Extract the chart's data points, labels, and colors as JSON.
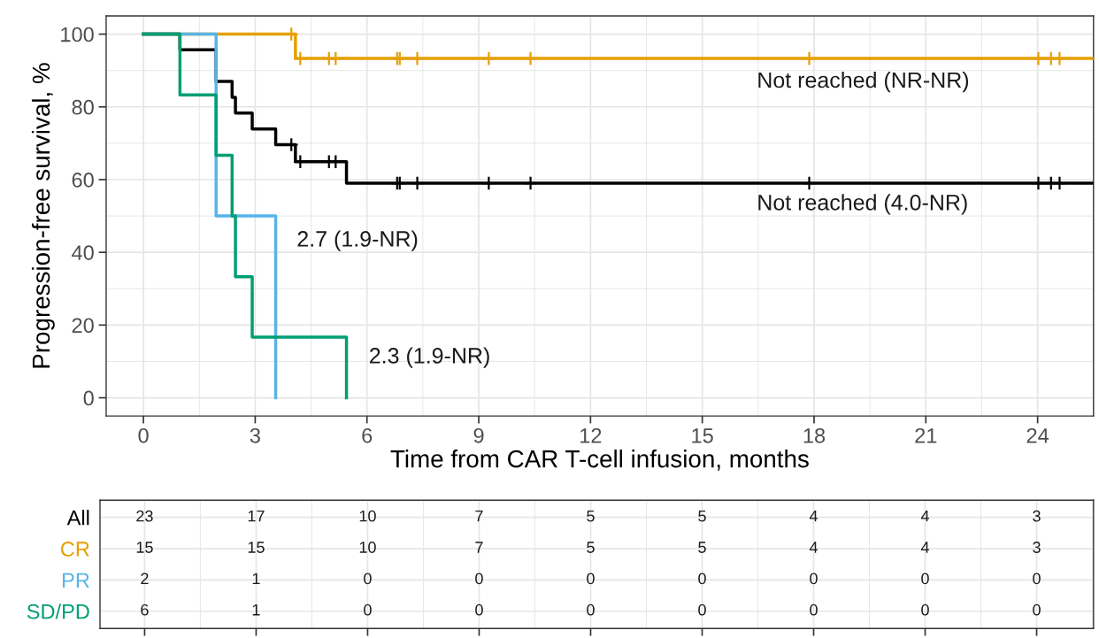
{
  "chart_data": [
    {
      "type": "step",
      "xlabel": "Time from CAR T-cell infusion, months",
      "ylabel": "Progression-free survival, %",
      "xlim": [
        -1.0,
        25.5
      ],
      "xticks": [
        0,
        3,
        6,
        9,
        12,
        15,
        18,
        21,
        24
      ],
      "ylim": [
        -5,
        105
      ],
      "yticks": [
        0,
        20,
        40,
        60,
        80,
        100
      ],
      "grid": true,
      "line_style": "solid",
      "series": [
        {
          "color": "#e69f00",
          "x": [
            0,
            4.08,
            25.5
          ],
          "values": [
            100,
            93.3,
            93.3
          ]
        },
        {
          "color": "#000000",
          "x": [
            0,
            0.98,
            1.95,
            2.38,
            2.47,
            2.92,
            3.55,
            4.08,
            5.45,
            25.5
          ],
          "values": [
            100,
            95.7,
            87.0,
            82.6,
            78.3,
            73.9,
            69.6,
            64.9,
            59.0,
            59.0
          ]
        },
        {
          "color": "#56b4e9",
          "x": [
            0,
            1.95,
            3.55
          ],
          "values": [
            100,
            50,
            0
          ]
        },
        {
          "color": "#009e73",
          "x": [
            0,
            0.98,
            1.95,
            2.38,
            2.47,
            2.92,
            5.45
          ],
          "values": [
            100,
            83.3,
            66.7,
            50,
            33.3,
            16.7,
            0
          ]
        },
        {
          "type": "scatter",
          "marker": "cross",
          "color": "#e69f00",
          "x": [
            3.97,
            4.21,
            4.98,
            5.16,
            6.81,
            6.88,
            7.35,
            9.27,
            10.39,
            17.87,
            24.02,
            24.36,
            24.59
          ],
          "values": [
            100,
            93.3,
            93.3,
            93.3,
            93.3,
            93.3,
            93.3,
            93.3,
            93.3,
            93.3,
            93.3,
            93.3,
            93.3
          ]
        },
        {
          "type": "scatter",
          "marker": "cross",
          "color": "#000000",
          "x": [
            3.97,
            4.21,
            4.98,
            5.16,
            6.81,
            6.88,
            7.35,
            9.27,
            10.39,
            17.87,
            24.02,
            24.36,
            24.59
          ],
          "values": [
            69.6,
            64.9,
            64.9,
            64.9,
            59.0,
            59.0,
            59.0,
            59.0,
            59.0,
            59.0,
            59.0,
            59.0,
            59.0
          ]
        }
      ],
      "annotations": [
        "Not reached (NR-NR)",
        "Not reached (4.0-NR)",
        "2.7 (1.9-NR)",
        "2.3 (1.9-NR)"
      ]
    },
    {
      "type": "heatmap",
      "categories": [
        null,
        null,
        null,
        null,
        null,
        null,
        null,
        null,
        null
      ],
      "grid": true,
      "data_labels": true,
      "y_categories": [
        "All",
        "CR",
        "PR",
        "SD/PD"
      ],
      "colors": [
        "#000000",
        "#e69f00",
        "#56b4e9",
        "#009e73"
      ],
      "cells": [
        [
          23,
          17,
          10,
          7,
          5,
          5,
          4,
          4,
          3
        ],
        [
          15,
          15,
          10,
          7,
          5,
          5,
          4,
          4,
          3
        ],
        [
          2,
          1,
          0,
          0,
          0,
          0,
          0,
          0,
          0
        ],
        [
          6,
          1,
          0,
          0,
          0,
          0,
          0,
          0,
          0
        ]
      ]
    }
  ]
}
